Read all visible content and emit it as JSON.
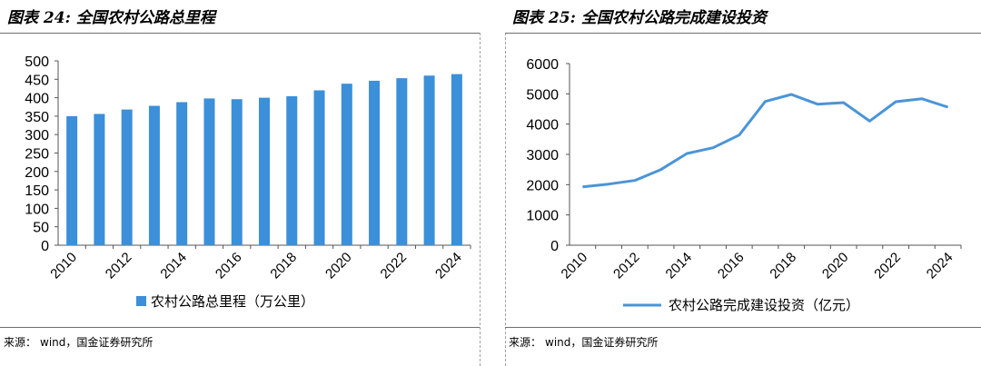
{
  "left": {
    "title_prefix": "图表 24:",
    "title": "全国农村公路总里程",
    "source_label": "来源：",
    "source_text": "wind，国金证券研究所"
  },
  "right": {
    "title_prefix": "图表 25:",
    "title": "全国农村公路完成建设投资",
    "source_label": "来源：",
    "source_text": "wind，国金证券研究所"
  },
  "chart_data": [
    {
      "type": "bar",
      "categories": [
        "2010",
        "2011",
        "2012",
        "2013",
        "2014",
        "2015",
        "2016",
        "2017",
        "2018",
        "2019",
        "2020",
        "2021",
        "2022",
        "2023",
        "2024"
      ],
      "x_tick_labels": [
        "2010",
        "2012",
        "2014",
        "2016",
        "2018",
        "2020",
        "2022",
        "2024"
      ],
      "series": [
        {
          "name": "农村公路总里程（万公里）",
          "values": [
            350,
            356,
            368,
            378,
            388,
            398,
            396,
            400,
            404,
            420,
            438,
            446,
            453,
            460,
            464
          ]
        }
      ],
      "ylim": [
        0,
        500
      ],
      "yticks": [
        0,
        50,
        100,
        150,
        200,
        250,
        300,
        350,
        400,
        450,
        500
      ],
      "grid": false,
      "legend_position": "bottom",
      "color": "#3c8fd9"
    },
    {
      "type": "line",
      "x": [
        "2010",
        "2011",
        "2012",
        "2013",
        "2014",
        "2015",
        "2016",
        "2017",
        "2018",
        "2019",
        "2020",
        "2021",
        "2022",
        "2023",
        "2024"
      ],
      "x_tick_labels": [
        "2010",
        "2012",
        "2014",
        "2016",
        "2018",
        "2020",
        "2022",
        "2024"
      ],
      "series": [
        {
          "name": "农村公路完成建设投资（亿元）",
          "values": [
            1930,
            2020,
            2140,
            2500,
            3030,
            3220,
            3640,
            4750,
            4980,
            4660,
            4710,
            4100,
            4740,
            4840,
            4560
          ]
        }
      ],
      "ylim": [
        0,
        6000
      ],
      "yticks": [
        0,
        1000,
        2000,
        3000,
        4000,
        5000,
        6000
      ],
      "grid": false,
      "legend_position": "bottom",
      "color": "#4a95d8"
    }
  ]
}
